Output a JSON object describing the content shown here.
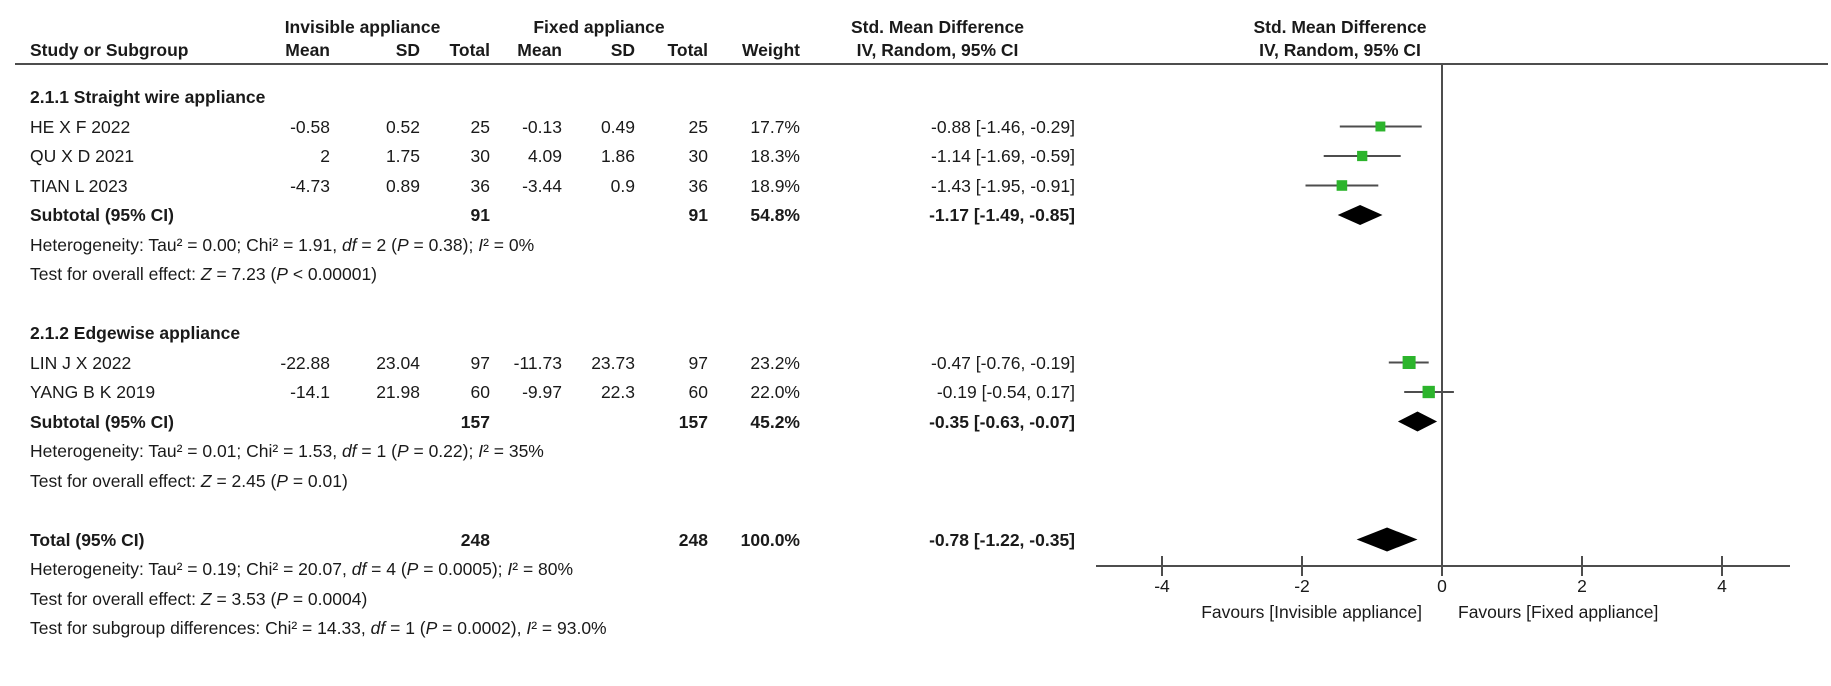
{
  "chart_data": {
    "type": "forest",
    "effect_measure": "Std. Mean Difference",
    "columns": {
      "group1": "Invisible appliance",
      "group2": "Fixed appliance",
      "smd": "Std. Mean Difference",
      "study": "Study or Subgroup",
      "mean": "Mean",
      "sd": "SD",
      "total": "Total",
      "weight": "Weight",
      "method": "IV, Random, 95% CI"
    },
    "subgroups": [
      {
        "label": "2.1.1 Straight wire appliance",
        "studies": [
          {
            "study": "HE X F 2022",
            "mean1": "-0.58",
            "sd1": "0.52",
            "total1": "25",
            "mean2": "-0.13",
            "sd2": "0.49",
            "total2": "25",
            "weight": "17.7%",
            "weight_pct": 17.7,
            "ci_text": "-0.88 [-1.46, -0.29]",
            "est": -0.88,
            "lo": -1.46,
            "hi": -0.29
          },
          {
            "study": "QU X D 2021",
            "mean1": "2",
            "sd1": "1.75",
            "total1": "30",
            "mean2": "4.09",
            "sd2": "1.86",
            "total2": "30",
            "weight": "18.3%",
            "weight_pct": 18.3,
            "ci_text": "-1.14 [-1.69, -0.59]",
            "est": -1.14,
            "lo": -1.69,
            "hi": -0.59
          },
          {
            "study": "TIAN L 2023",
            "mean1": "-4.73",
            "sd1": "0.89",
            "total1": "36",
            "mean2": "-3.44",
            "sd2": "0.9",
            "total2": "36",
            "weight": "18.9%",
            "weight_pct": 18.9,
            "ci_text": "-1.43 [-1.95, -0.91]",
            "est": -1.43,
            "lo": -1.95,
            "hi": -0.91
          }
        ],
        "subtotal": {
          "study": "Subtotal (95% CI)",
          "total1": "91",
          "total2": "91",
          "weight": "54.8%",
          "ci_text": "-1.17 [-1.49, -0.85]",
          "est": -1.17,
          "lo": -1.49,
          "hi": -0.85
        },
        "notes": [
          "Heterogeneity: Tau² = 0.00; Chi² = 1.91, df = 2 (P = 0.38); I² = 0%",
          "Test for overall effect: Z = 7.23 (P < 0.00001)"
        ]
      },
      {
        "label": "2.1.2 Edgewise appliance",
        "studies": [
          {
            "study": "LIN J X 2022",
            "mean1": "-22.88",
            "sd1": "23.04",
            "total1": "97",
            "mean2": "-11.73",
            "sd2": "23.73",
            "total2": "97",
            "weight": "23.2%",
            "weight_pct": 23.2,
            "ci_text": "-0.47 [-0.76, -0.19]",
            "est": -0.47,
            "lo": -0.76,
            "hi": -0.19
          },
          {
            "study": "YANG B K 2019",
            "mean1": "-14.1",
            "sd1": "21.98",
            "total1": "60",
            "mean2": "-9.97",
            "sd2": "22.3",
            "total2": "60",
            "weight": "22.0%",
            "weight_pct": 22.0,
            "ci_text": "-0.19 [-0.54, 0.17]",
            "est": -0.19,
            "lo": -0.54,
            "hi": 0.17
          }
        ],
        "subtotal": {
          "study": "Subtotal (95% CI)",
          "total1": "157",
          "total2": "157",
          "weight": "45.2%",
          "ci_text": "-0.35 [-0.63, -0.07]",
          "est": -0.35,
          "lo": -0.63,
          "hi": -0.07
        },
        "notes": [
          "Heterogeneity: Tau² = 0.01; Chi² = 1.53, df = 1 (P = 0.22); I² = 35%",
          "Test for overall effect: Z = 2.45 (P = 0.01)"
        ]
      }
    ],
    "total": {
      "study": "Total (95% CI)",
      "total1": "248",
      "total2": "248",
      "weight": "100.0%",
      "ci_text": "-0.78 [-1.22, -0.35]",
      "est": -0.78,
      "lo": -1.22,
      "hi": -0.35
    },
    "total_notes": [
      "Heterogeneity: Tau² = 0.19; Chi² = 20.07, df = 4 (P = 0.0005); I² = 80%",
      "Test for overall effect: Z = 3.53 (P = 0.0004)",
      "Test for subgroup differences: Chi² = 14.33, df = 1 (P = 0.0002), I² = 93.0%"
    ],
    "axis": {
      "ticks": [
        -4,
        -2,
        0,
        2,
        4
      ],
      "range": [
        -4.9,
        4.9
      ],
      "favours_left": "Favours [Invisible appliance]",
      "favours_right": "Favours [Fixed appliance]"
    },
    "colors": {
      "marker": "#2CB42C",
      "line": "#4D4D4D",
      "diamond": "#000000",
      "text": "#1A1A1A"
    }
  }
}
